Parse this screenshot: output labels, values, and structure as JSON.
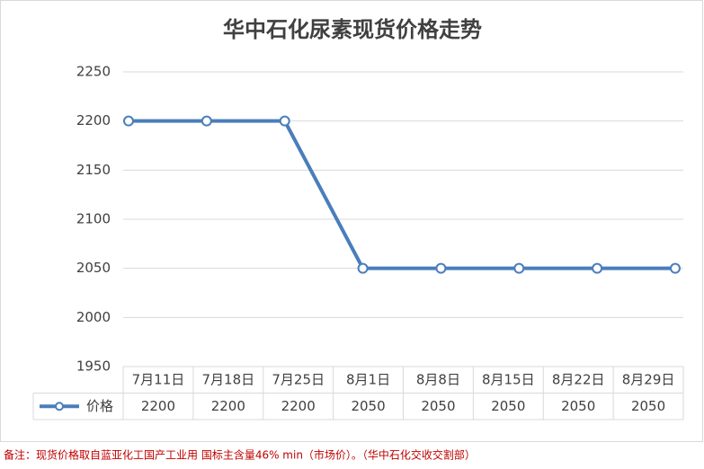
{
  "chart_data": {
    "type": "line",
    "title": "华中石化尿素现货价格走势",
    "categories": [
      "7月11日",
      "7月18日",
      "7月25日",
      "8月1日",
      "8月8日",
      "8月15日",
      "8月22日",
      "8月29日"
    ],
    "series": [
      {
        "name": "价格",
        "color": "#4a7ebb",
        "values": [
          2200,
          2200,
          2200,
          2050,
          2050,
          2050,
          2050,
          2050
        ]
      }
    ],
    "ylim": [
      1950,
      2250
    ],
    "yticks": [
      1950,
      2000,
      2050,
      2100,
      2150,
      2200,
      2250
    ],
    "grid": true,
    "data_table": true,
    "note": "备注：现货价格取自蓝亚化工国产工业用 国标主含量46% min（市场价）。（华中石化交收交割部）"
  }
}
